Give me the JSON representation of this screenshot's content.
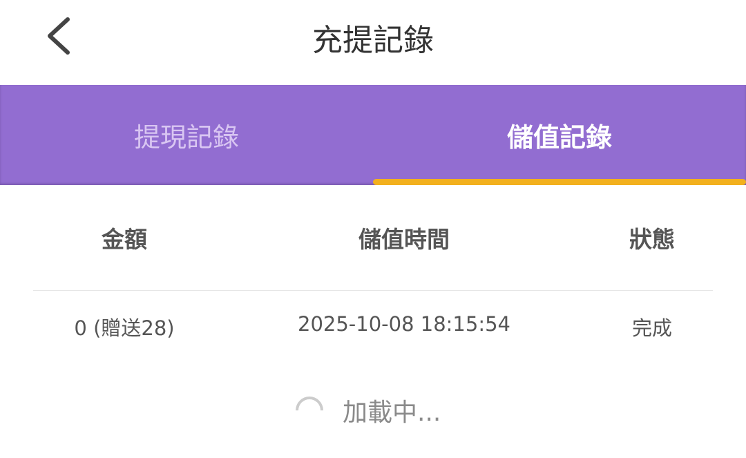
{
  "header": {
    "title": "充提記錄",
    "back_icon": "chevron-left-icon"
  },
  "tabs": [
    {
      "label": "提現記錄",
      "active": false
    },
    {
      "label": "儲值記錄",
      "active": true
    }
  ],
  "colors": {
    "tab_bar": "#926dd1",
    "indicator": "#f2b01e"
  },
  "table": {
    "columns": [
      "金額",
      "儲值時間",
      "狀態"
    ],
    "rows": [
      {
        "amount": "0 (贈送28)",
        "time": "2025-10-08 18:15:54",
        "status": "完成"
      }
    ]
  },
  "loading": {
    "text": "加載中..."
  }
}
